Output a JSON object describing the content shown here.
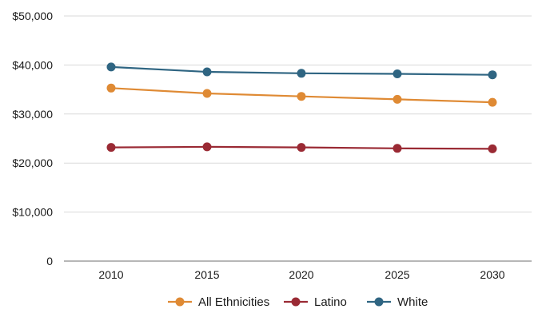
{
  "chart_data": {
    "type": "line",
    "title": "",
    "xlabel": "",
    "ylabel": "",
    "x": [
      "2010",
      "2015",
      "2020",
      "2025",
      "2030"
    ],
    "y_ticks": [
      "0",
      "$10,000",
      "$20,000",
      "$30,000",
      "$40,000",
      "$50,000"
    ],
    "y_tick_values": [
      0,
      10000,
      20000,
      30000,
      40000,
      50000
    ],
    "ylim": [
      0,
      50000
    ],
    "grid": true,
    "legend_position": "bottom",
    "series": [
      {
        "name": "All Ethnicities",
        "color": "#df8a34",
        "values": [
          35300,
          34200,
          33600,
          33000,
          32400
        ]
      },
      {
        "name": "Latino",
        "color": "#9a2a34",
        "values": [
          23200,
          23300,
          23200,
          23000,
          22900
        ]
      },
      {
        "name": "White",
        "color": "#2f6582",
        "values": [
          39600,
          38600,
          38300,
          38200,
          38000
        ]
      }
    ]
  }
}
